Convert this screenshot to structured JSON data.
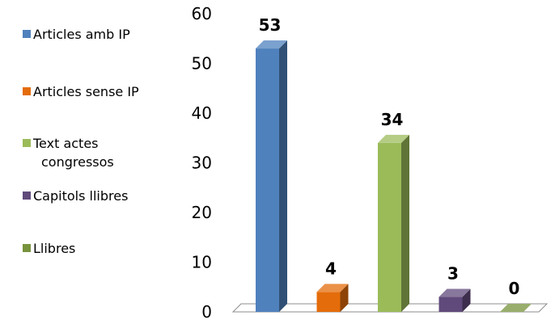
{
  "chart_data": {
    "type": "bar",
    "title": "",
    "xlabel": "",
    "ylabel": "",
    "ylim": [
      0,
      60
    ],
    "yticks": [
      "0",
      "10",
      "20",
      "30",
      "40",
      "50",
      "60"
    ],
    "categories": [
      "Articles amb IP",
      "Articles sense IP",
      "Text actes congressos",
      "Capitols llibres",
      "Llibres"
    ],
    "values": [
      53,
      4,
      34,
      3,
      0
    ],
    "data_labels": [
      "53",
      "4",
      "34",
      "3",
      "0"
    ],
    "legend": {
      "placement": "left",
      "entries": [
        {
          "lines": [
            "Articles amb IP"
          ],
          "color": "#4F81BD"
        },
        {
          "lines": [
            "Articles sense IP"
          ],
          "color": "#E46C0A"
        },
        {
          "lines": [
            "Text actes",
            "congressos"
          ],
          "color": "#9BBB59"
        },
        {
          "lines": [
            "Capitols llibres"
          ],
          "color": "#604A7B"
        },
        {
          "lines": [
            "Llibres"
          ],
          "color": "#77933C"
        }
      ]
    },
    "grid": false,
    "style": "3d-column"
  }
}
